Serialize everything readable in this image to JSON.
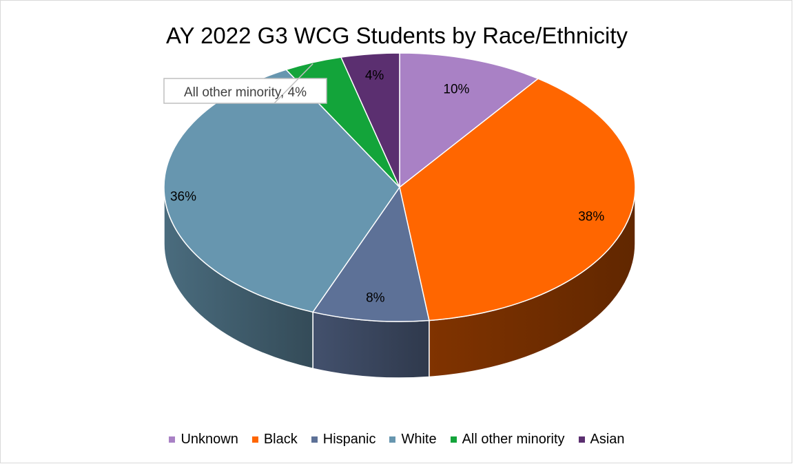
{
  "chart_data": {
    "type": "pie",
    "style": "3d",
    "title": "AY 2022 G3 WCG Students by Race/Ethnicity",
    "slices": [
      {
        "label": "Unknown",
        "value": 10,
        "label_text": "10%",
        "color": "#a981c5"
      },
      {
        "label": "Black",
        "value": 38,
        "label_text": "38%",
        "color": "#ff6600"
      },
      {
        "label": "Hispanic",
        "value": 8,
        "label_text": "8%",
        "color": "#5d7197"
      },
      {
        "label": "White",
        "value": 36,
        "label_text": "36%",
        "color": "#6796af"
      },
      {
        "label": "All other minority",
        "value": 4,
        "label_text": "All other minority, 4%",
        "color": "#13a43a"
      },
      {
        "label": "Asian",
        "value": 4,
        "label_text": "4%",
        "color": "#5b2f70"
      }
    ],
    "legend_position": "bottom"
  }
}
